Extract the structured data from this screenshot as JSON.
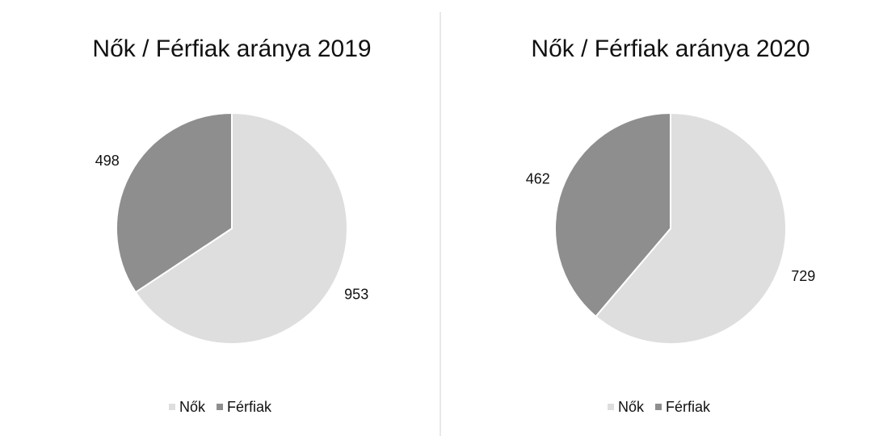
{
  "chart_data": [
    {
      "type": "pie",
      "title": "Nők / Férfiak aránya 2019",
      "categories": [
        "Nők",
        "Férfiak"
      ],
      "values": [
        953,
        498
      ],
      "colors": [
        "#dedede",
        "#8e8e8e"
      ]
    },
    {
      "type": "pie",
      "title": "Nők / Férfiak aránya 2020",
      "categories": [
        "Nők",
        "Férfiak"
      ],
      "values": [
        729,
        462
      ],
      "colors": [
        "#dedede",
        "#8e8e8e"
      ]
    }
  ]
}
